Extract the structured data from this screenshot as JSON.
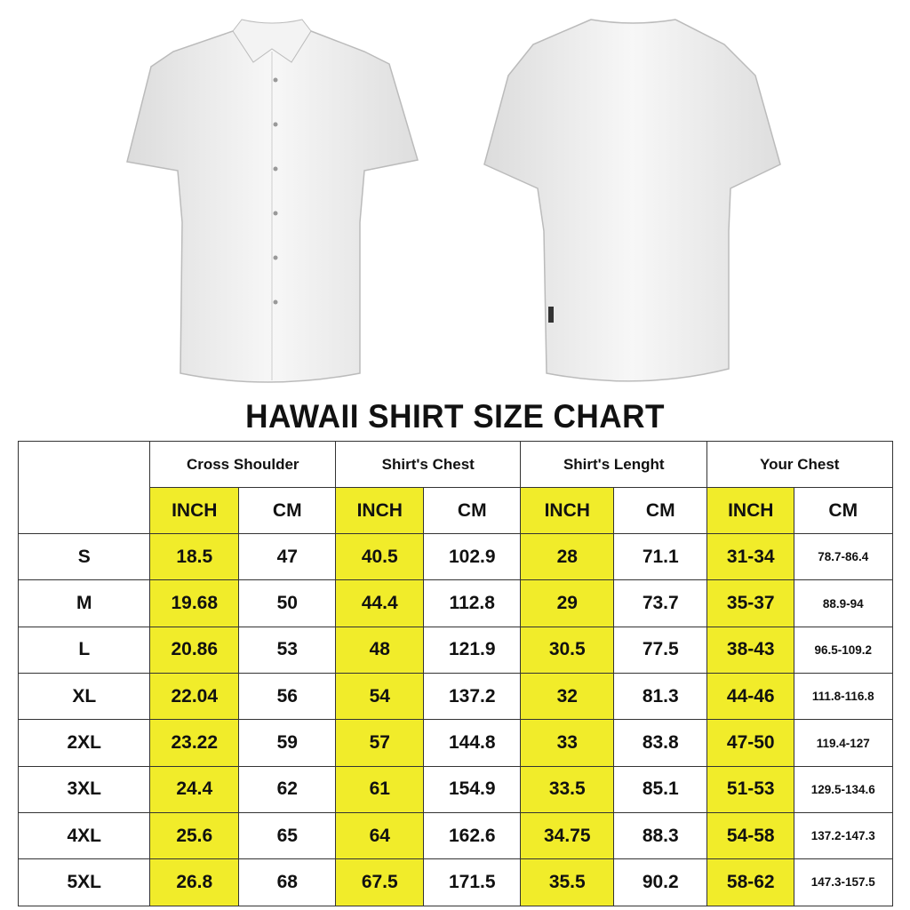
{
  "images": {
    "front": "shirt-front-icon",
    "back": "shirt-back-icon"
  },
  "title": "HAWAII SHIRT SIZE CHART",
  "colors": {
    "highlight": "#f1ec2a",
    "border": "#333333"
  },
  "chart_data": {
    "type": "table",
    "title": "HAWAII SHIRT SIZE CHART",
    "groups": [
      "Cross Shoulder",
      "Shirt's Chest",
      "Shirt's Lenght",
      "Your Chest"
    ],
    "units": [
      "INCH",
      "CM"
    ],
    "rows": [
      {
        "size": "S",
        "values": [
          "18.5",
          "47",
          "40.5",
          "102.9",
          "28",
          "71.1",
          "31-34",
          "78.7-86.4"
        ]
      },
      {
        "size": "M",
        "values": [
          "19.68",
          "50",
          "44.4",
          "112.8",
          "29",
          "73.7",
          "35-37",
          "88.9-94"
        ]
      },
      {
        "size": "L",
        "values": [
          "20.86",
          "53",
          "48",
          "121.9",
          "30.5",
          "77.5",
          "38-43",
          "96.5-109.2"
        ]
      },
      {
        "size": "XL",
        "values": [
          "22.04",
          "56",
          "54",
          "137.2",
          "32",
          "81.3",
          "44-46",
          "111.8-116.8"
        ]
      },
      {
        "size": "2XL",
        "values": [
          "23.22",
          "59",
          "57",
          "144.8",
          "33",
          "83.8",
          "47-50",
          "119.4-127"
        ]
      },
      {
        "size": "3XL",
        "values": [
          "24.4",
          "62",
          "61",
          "154.9",
          "33.5",
          "85.1",
          "51-53",
          "129.5-134.6"
        ]
      },
      {
        "size": "4XL",
        "values": [
          "25.6",
          "65",
          "64",
          "162.6",
          "34.75",
          "88.3",
          "54-58",
          "137.2-147.3"
        ]
      },
      {
        "size": "5XL",
        "values": [
          "26.8",
          "68",
          "67.5",
          "171.5",
          "35.5",
          "90.2",
          "58-62",
          "147.3-157.5"
        ]
      }
    ]
  }
}
